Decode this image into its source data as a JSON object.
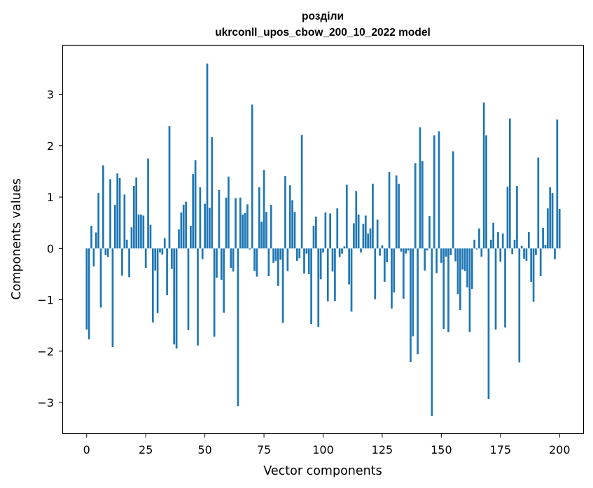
{
  "chart_data": {
    "type": "bar",
    "title_line1": "розділи",
    "title_line2": "ukrconll_upos_cbow_200_10_2022 model",
    "xlabel": "Vector components",
    "ylabel": "Components values",
    "xlim": [
      -10,
      210
    ],
    "ylim": [
      -3.6,
      3.95
    ],
    "xticks": [
      0,
      25,
      50,
      75,
      100,
      125,
      150,
      175,
      200
    ],
    "yticks": [
      -3,
      -2,
      -1,
      0,
      1,
      2,
      3
    ],
    "ytick_labels": [
      "−3",
      "−2",
      "−1",
      "0",
      "1",
      "2",
      "3"
    ],
    "color": "#1f77b4",
    "values": [
      -1.58,
      -1.77,
      0.44,
      -0.35,
      0.31,
      1.08,
      -1.15,
      1.62,
      -0.13,
      -0.17,
      1.35,
      -1.92,
      0.85,
      1.46,
      1.37,
      -0.53,
      1.05,
      0.17,
      -0.56,
      0.41,
      1.22,
      1.38,
      0.66,
      0.66,
      0.64,
      -0.38,
      1.75,
      0.46,
      -1.44,
      -0.43,
      -1.26,
      -0.08,
      -0.12,
      0.2,
      -0.91,
      2.38,
      -0.4,
      -1.87,
      -1.95,
      0.37,
      0.7,
      0.85,
      0.91,
      -1.59,
      0.44,
      1.45,
      1.72,
      -1.89,
      1.19,
      -0.21,
      0.87,
      3.6,
      0.79,
      2.17,
      -1.72,
      -0.57,
      1.14,
      -0.61,
      -1.25,
      0.99,
      1.4,
      -0.38,
      -0.45,
      0.98,
      -3.07,
      0.99,
      0.66,
      0.69,
      0.86,
      -0.02,
      2.8,
      -0.44,
      -0.55,
      1.19,
      0.52,
      1.53,
      0.71,
      -0.54,
      0.85,
      -0.28,
      -0.24,
      -0.73,
      -0.22,
      -1.45,
      1.41,
      -0.44,
      1.23,
      0.94,
      0.71,
      -0.24,
      -0.19,
      2.21,
      -0.49,
      -0.1,
      -0.5,
      -1.47,
      0.44,
      0.62,
      -1.53,
      -0.6,
      -0.08,
      0.7,
      -1.03,
      0.68,
      -0.45,
      -1.02,
      0.78,
      -0.17,
      -0.1,
      0.04,
      1.24,
      -0.7,
      -1.23,
      0.49,
      1.12,
      0.66,
      -0.08,
      0.48,
      0.64,
      0.29,
      0.39,
      1.26,
      -0.99,
      0.56,
      -0.14,
      0.06,
      -0.65,
      -0.27,
      1.49,
      -1.17,
      -0.86,
      1.42,
      1.26,
      -0.06,
      -0.98,
      -0.1,
      -0.04,
      -2.21,
      -1.71,
      1.66,
      -2.06,
      2.36,
      1.7,
      -0.43,
      -0.04,
      0.63,
      -3.26,
      2.2,
      -0.48,
      2.28,
      -0.28,
      -1.57,
      -0.16,
      -1.63,
      -0.13,
      1.89,
      -0.25,
      -0.89,
      -1.2,
      -0.41,
      -0.44,
      -0.76,
      -1.63,
      -0.79,
      0.17,
      -0.02,
      0.39,
      -0.16,
      2.84,
      2.2,
      -2.93,
      0.17,
      0.5,
      -1.58,
      0.32,
      -0.26,
      0.29,
      -1.54,
      1.2,
      2.53,
      -0.11,
      0.17,
      1.22,
      -2.22,
      0.05,
      -0.2,
      -0.24,
      0.32,
      -0.65,
      -1.04,
      -0.13,
      1.77,
      -0.54,
      0.4,
      0.07,
      0.78,
      1.19,
      1.08,
      -0.21,
      2.51,
      0.77
    ]
  }
}
